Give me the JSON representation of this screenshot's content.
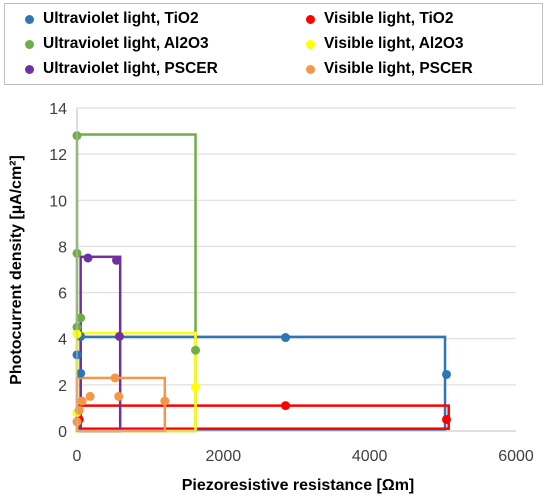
{
  "chart_data": {
    "type": "scatter",
    "xlabel": "Piezoresistive resistance   [Ωm]",
    "ylabel": "Photocurrent density   [µA/cm²]",
    "xlim": [
      0,
      6000
    ],
    "ylim": [
      0,
      14
    ],
    "xticks": [
      "0",
      "2000",
      "4000",
      "6000"
    ],
    "yticks": [
      "0",
      "2",
      "4",
      "6",
      "8",
      "10",
      "12",
      "14"
    ],
    "grid": "horizontal",
    "legend_position": "top",
    "series": [
      {
        "name": "Ultraviolet light, TiO2",
        "color": "#2e75b6",
        "points": [
          [
            0,
            3.3
          ],
          [
            50,
            2.5
          ],
          [
            50,
            4.1
          ],
          [
            2850,
            4.05
          ],
          [
            5050,
            2.45
          ]
        ],
        "rect": [
          50,
          0.05,
          5030,
          4.08
        ]
      },
      {
        "name": "Visible light, TiO2",
        "color": "#ff0000",
        "points": [
          [
            30,
            0.5
          ],
          [
            2850,
            1.1
          ],
          [
            5050,
            0.5
          ]
        ],
        "rect": [
          20,
          0.1,
          5080,
          1.1
        ]
      },
      {
        "name": "Ultraviolet light, Al2O3",
        "color": "#70ad47",
        "points": [
          [
            0,
            12.8
          ],
          [
            0,
            7.7
          ],
          [
            0,
            4.5
          ],
          [
            50,
            4.9
          ],
          [
            1620,
            3.5
          ]
        ],
        "rect": [
          0,
          0,
          1620,
          12.85
        ]
      },
      {
        "name": "Visible light, Al2O3",
        "color": "#ffff00",
        "points": [
          [
            0,
            4.2
          ],
          [
            0,
            0.8
          ],
          [
            1620,
            1.9
          ]
        ],
        "rect": [
          0,
          0,
          1620,
          4.25
        ]
      },
      {
        "name": "Ultraviolet light, PSCER",
        "color": "#7030a0",
        "points": [
          [
            150,
            7.5
          ],
          [
            540,
            7.4
          ],
          [
            580,
            4.1
          ]
        ],
        "rect": [
          50,
          0,
          590,
          7.55
        ]
      },
      {
        "name": "Visible light, PSCER",
        "color": "#f79646",
        "points": [
          [
            0,
            0.4
          ],
          [
            30,
            0.9
          ],
          [
            70,
            1.3
          ],
          [
            180,
            1.5
          ],
          [
            520,
            2.3
          ],
          [
            570,
            1.5
          ],
          [
            1200,
            1.3
          ]
        ],
        "rect": [
          0,
          0,
          1200,
          2.3
        ]
      }
    ]
  }
}
